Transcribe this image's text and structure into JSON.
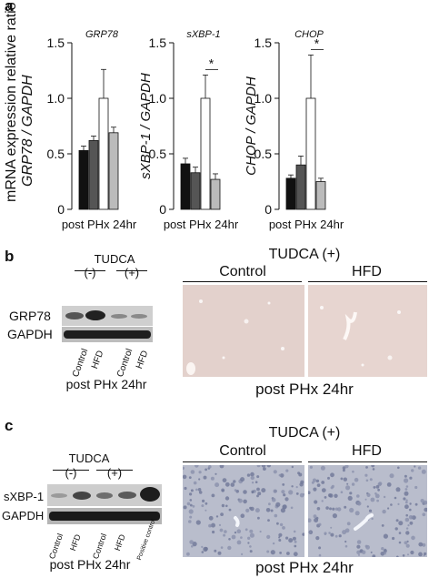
{
  "panel_a": {
    "letter": "a",
    "ylabel_line1": "mRNA expression relative ratio",
    "ylabel_line2": "GRP78 / GAPDH",
    "xlabel": "post PHx 24hr"
  },
  "panel_b": {
    "letter": "b",
    "tudca_label": "TUDCA",
    "minus": "(-)",
    "plus": "(+)",
    "row1": "GRP78",
    "row2": "GAPDH",
    "lanes": [
      "Control",
      "HFD",
      "Control",
      "HFD"
    ],
    "caption": "post PHx 24hr",
    "ihc_title": "TUDCA (+)",
    "ihc_control": "Control",
    "ihc_hfd": "HFD",
    "ihc_caption": "post PHx 24hr"
  },
  "panel_c": {
    "letter": "c",
    "tudca_label": "TUDCA",
    "minus": "(-)",
    "plus": "(+)",
    "row1": "sXBP-1",
    "row2": "GAPDH",
    "lanes": [
      "Control",
      "HFD",
      "Control",
      "HFD",
      "Positive control"
    ],
    "caption": "post PHx 24hr",
    "ihc_title": "TUDCA (+)",
    "ihc_control": "Control",
    "ihc_hfd": "HFD",
    "ihc_caption": "post PHx 24hr"
  },
  "colors": {
    "bar1": "#111111",
    "bar2": "#555555",
    "bar3": "#ffffff",
    "bar4": "#bbbbbb",
    "ihc_b": "#e9d9d4",
    "ihc_c": "#b9bdcc"
  },
  "chart_data": [
    {
      "type": "bar",
      "title": "GRP78",
      "ylabel": "GRP78 / GAPDH",
      "xlabel": "post PHx 24hr",
      "ylim": [
        0,
        1.5
      ],
      "yticks": [
        "0",
        "0.5",
        "1.0",
        "1.5"
      ],
      "values": [
        0.53,
        0.62,
        1.0,
        0.69
      ],
      "errors": [
        0.04,
        0.04,
        0.26,
        0.05
      ],
      "significance": ""
    },
    {
      "type": "bar",
      "title": "sXBP-1",
      "ylabel": "sXBP-1 / GAPDH",
      "xlabel": "post PHx 24hr",
      "ylim": [
        0,
        1.5
      ],
      "yticks": [
        "0",
        "0.5",
        "1.0",
        "1.5"
      ],
      "values": [
        0.41,
        0.33,
        1.0,
        0.27
      ],
      "errors": [
        0.05,
        0.05,
        0.21,
        0.05
      ],
      "significance": "*"
    },
    {
      "type": "bar",
      "title": "CHOP",
      "ylabel": "CHOP / GAPDH",
      "xlabel": "post PHx 24hr",
      "ylim": [
        0,
        1.5
      ],
      "yticks": [
        "0",
        "0.5",
        "1.0",
        "1.5"
      ],
      "values": [
        0.28,
        0.4,
        1.0,
        0.25
      ],
      "errors": [
        0.03,
        0.08,
        0.39,
        0.03
      ],
      "significance": "*"
    }
  ]
}
